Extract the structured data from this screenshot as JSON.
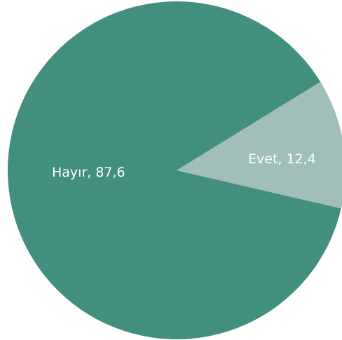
{
  "chart_data": {
    "type": "pie",
    "slices": [
      {
        "label": "Hayır",
        "value": 87.6,
        "text": "Hayır, 87,6",
        "color": "#428f80"
      },
      {
        "label": "Evet",
        "value": 12.4,
        "text": "Evet, 12,4",
        "color": "#a2beb8"
      }
    ],
    "title": "",
    "legend": "none"
  }
}
